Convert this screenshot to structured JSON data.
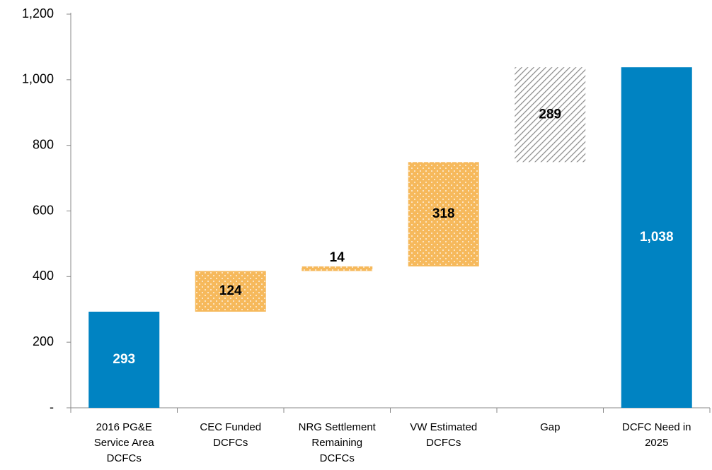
{
  "chart_data": {
    "type": "waterfall",
    "categories": [
      "2016 PG&E Service Area DCFCs",
      "CEC Funded DCFCs",
      "NRG Settlement Remaining DCFCs",
      "VW Estimated DCFCs",
      "Gap",
      "DCFC Need in 2025"
    ],
    "values": [
      293,
      124,
      14,
      318,
      289,
      1038
    ],
    "value_labels": [
      "293",
      "124",
      "14",
      "318",
      "289",
      "1,038"
    ],
    "bar_kinds": [
      "total",
      "increase",
      "increase",
      "increase",
      "increase",
      "total"
    ],
    "colors": [
      "#0083c2",
      "#f6b95c",
      "#f6b95c",
      "#f6b95c",
      "#8c8c8c",
      "#0083c2"
    ],
    "patterns": [
      "solid",
      "dots",
      "dots",
      "dots",
      "hatch",
      "solid"
    ],
    "ylim": [
      0,
      1200
    ],
    "yticks": [
      {
        "value": 0,
        "label": "-"
      },
      200,
      400,
      600,
      800,
      {
        "value": 1000,
        "label": "1,000"
      },
      {
        "value": 1200,
        "label": "1,200"
      }
    ]
  }
}
